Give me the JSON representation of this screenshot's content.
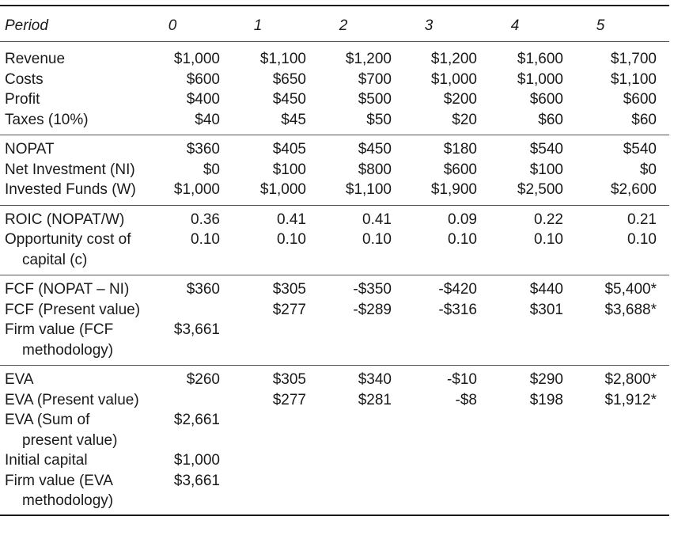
{
  "header": {
    "label": "Period",
    "periods": [
      "0",
      "1",
      "2",
      "3",
      "4",
      "5"
    ]
  },
  "groups": [
    {
      "rows": [
        {
          "label": [
            "Revenue"
          ],
          "values": [
            "$1,000",
            "$1,100",
            "$1,200",
            "$1,200",
            "$1,600",
            "$1,700"
          ]
        },
        {
          "label": [
            "Costs"
          ],
          "values": [
            "$600",
            "$650",
            "$700",
            "$1,000",
            "$1,000",
            "$1,100"
          ]
        },
        {
          "label": [
            "Profit"
          ],
          "values": [
            "$400",
            "$450",
            "$500",
            "$200",
            "$600",
            "$600"
          ]
        },
        {
          "label": [
            "Taxes (10%)"
          ],
          "values": [
            "$40",
            "$45",
            "$50",
            "$20",
            "$60",
            "$60"
          ]
        }
      ]
    },
    {
      "rows": [
        {
          "label": [
            "NOPAT"
          ],
          "values": [
            "$360",
            "$405",
            "$450",
            "$180",
            "$540",
            "$540"
          ]
        },
        {
          "label": [
            "Net Investment (NI)"
          ],
          "values": [
            "$0",
            "$100",
            "$800",
            "$600",
            "$100",
            "$0"
          ]
        },
        {
          "label": [
            "Invested Funds (W)"
          ],
          "values": [
            "$1,000",
            "$1,000",
            "$1,100",
            "$1,900",
            "$2,500",
            "$2,600"
          ]
        }
      ]
    },
    {
      "rows": [
        {
          "label": [
            "ROIC (NOPAT/W)"
          ],
          "values": [
            "0.36",
            "0.41",
            "0.41",
            "0.09",
            "0.22",
            "0.21"
          ]
        },
        {
          "label": [
            "Opportunity cost of",
            "capital (c)"
          ],
          "values": [
            "0.10",
            "0.10",
            "0.10",
            "0.10",
            "0.10",
            "0.10"
          ]
        }
      ]
    },
    {
      "rows": [
        {
          "label": [
            "FCF (NOPAT – NI)"
          ],
          "values": [
            "$360",
            "$305",
            "-$350",
            "-$420",
            "$440",
            "$5,400*"
          ]
        },
        {
          "label": [
            "FCF (Present value)"
          ],
          "values": [
            "",
            "$277",
            "-$289",
            "-$316",
            "$301",
            "$3,688*"
          ]
        },
        {
          "label": [
            "Firm value (FCF",
            "methodology)"
          ],
          "values": [
            "$3,661",
            "",
            "",
            "",
            "",
            ""
          ]
        }
      ]
    },
    {
      "rows": [
        {
          "label": [
            "EVA"
          ],
          "values": [
            "$260",
            "$305",
            "$340",
            "-$10",
            "$290",
            "$2,800*"
          ]
        },
        {
          "label": [
            "EVA (Present value)"
          ],
          "values": [
            "",
            "$277",
            "$281",
            "-$8",
            "$198",
            "$1,912*"
          ]
        },
        {
          "label": [
            "EVA (Sum of",
            "present value)"
          ],
          "values": [
            "$2,661",
            "",
            "",
            "",
            "",
            ""
          ]
        },
        {
          "label": [
            "Initial capital"
          ],
          "values": [
            "$1,000",
            "",
            "",
            "",
            "",
            ""
          ]
        },
        {
          "label": [
            "Firm value (EVA",
            "methodology)"
          ],
          "values": [
            "$3,661",
            "",
            "",
            "",
            "",
            ""
          ]
        }
      ]
    }
  ]
}
